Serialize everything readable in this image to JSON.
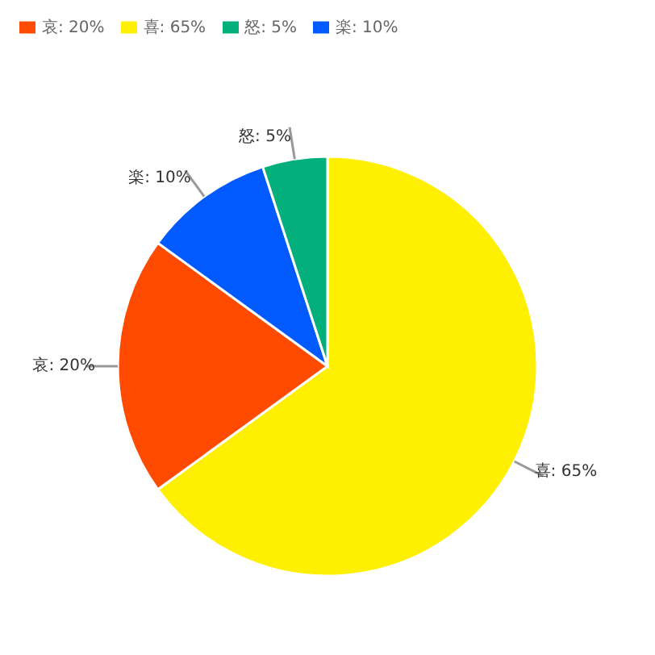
{
  "chart_data": {
    "type": "pie",
    "categories": [
      "喜",
      "哀",
      "楽",
      "怒"
    ],
    "values": [
      65,
      20,
      10,
      5
    ],
    "value_labels": [
      "65%",
      "20%",
      "10%",
      "5%"
    ],
    "colors": [
      "#ffef00",
      "#ff4b00",
      "#005aff",
      "#03af7a"
    ],
    "legend": "top left"
  }
}
